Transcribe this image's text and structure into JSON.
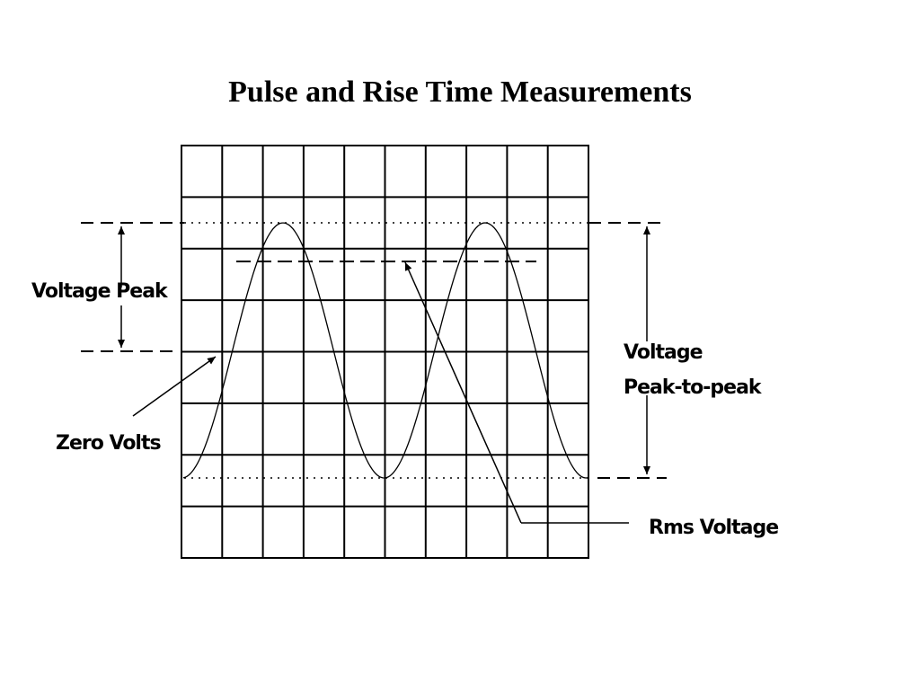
{
  "title": "Pulse and Rise Time Measurements",
  "labels": {
    "voltage_peak": "Voltage Peak",
    "zero_volts": "Zero Volts",
    "peak_to_peak": [
      "Voltage",
      "Peak-to-peak"
    ],
    "rms_voltage": "Rms Voltage"
  }
}
